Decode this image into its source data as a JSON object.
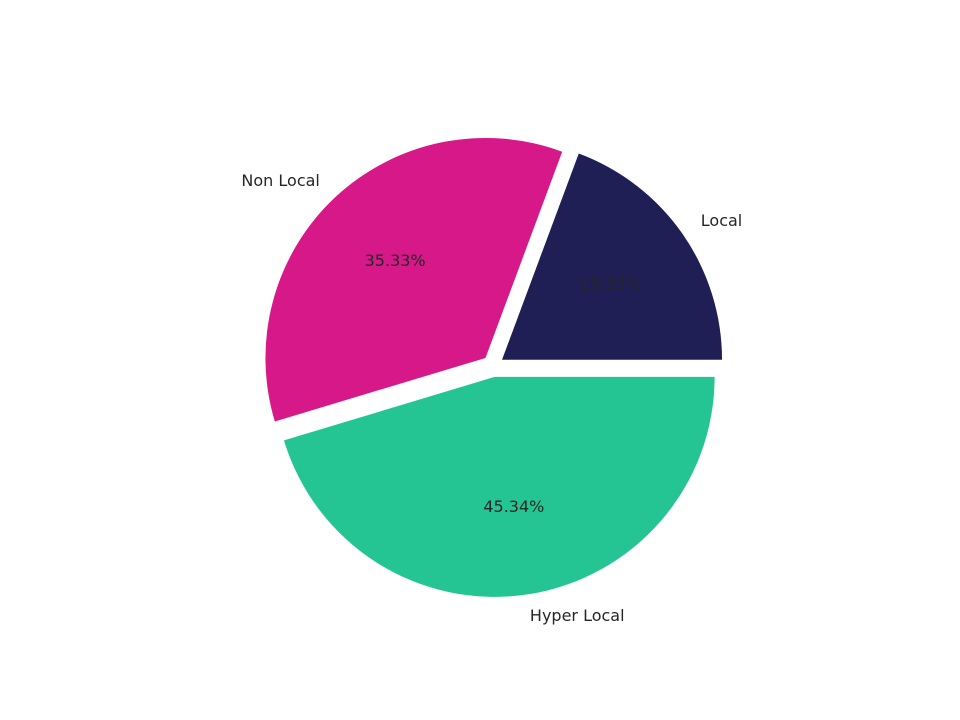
{
  "chart_data": {
    "type": "pie",
    "categories": [
      "Local",
      "Non Local",
      "Hyper Local"
    ],
    "values": [
      19.33,
      35.33,
      45.34
    ],
    "value_labels": [
      "19.33%",
      "35.33%",
      "45.34%"
    ],
    "colors": [
      "#1f1f55",
      "#d61888",
      "#24c592"
    ]
  }
}
